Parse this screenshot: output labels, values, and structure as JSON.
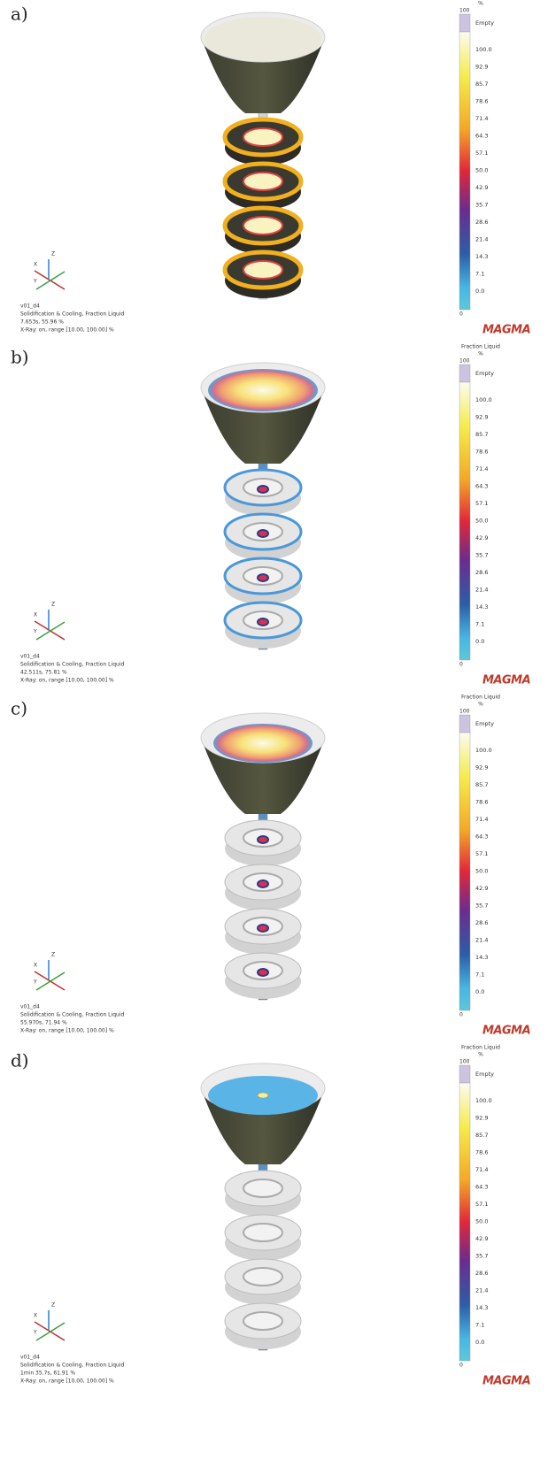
{
  "panels": [
    {
      "label": "a)",
      "legend": {
        "unit": "%",
        "max": "100",
        "min": "0",
        "empty": "Empty",
        "ticks": [
          "100.0",
          "92.9",
          "85.7",
          "78.6",
          "71.4",
          "64.3",
          "57.1",
          "50.0",
          "42.9",
          "35.7",
          "28.6",
          "21.4",
          "14.3",
          "7.1",
          "0.0"
        ]
      },
      "axes": {
        "x": "X",
        "y": "Y",
        "z": "Z"
      },
      "info": [
        "v01_d4",
        "Solidification & Cooling, Fraction Liquid",
        "7.653s, 55.96 %",
        "X-Ray: on, range [10.00, 100.00] %"
      ],
      "logo": "MAGMA"
    },
    {
      "label": "b)",
      "legend": {
        "title": "Fraction Liquid",
        "unit": "%",
        "max": "100",
        "min": "0",
        "empty": "Empty",
        "ticks": [
          "100.0",
          "92.9",
          "85.7",
          "78.6",
          "71.4",
          "64.3",
          "57.1",
          "50.0",
          "42.9",
          "35.7",
          "28.6",
          "21.4",
          "14.3",
          "7.1",
          "0.0"
        ]
      },
      "axes": {
        "x": "X",
        "y": "Y",
        "z": "Z"
      },
      "info": [
        "v01_d4",
        "Solidification & Cooling, Fraction Liquid",
        "42.511s, 75.81 %",
        "X-Ray: on, range [10.00, 100.00] %"
      ],
      "logo": "MAGMA"
    },
    {
      "label": "c)",
      "legend": {
        "title": "Fraction Liquid",
        "unit": "%",
        "max": "100",
        "min": "0",
        "empty": "Empty",
        "ticks": [
          "100.0",
          "92.9",
          "85.7",
          "78.6",
          "71.4",
          "64.3",
          "57.1",
          "50.0",
          "42.9",
          "35.7",
          "28.6",
          "21.4",
          "14.3",
          "7.1",
          "0.0"
        ]
      },
      "axes": {
        "x": "X",
        "y": "Y",
        "z": "Z"
      },
      "info": [
        "v01_d4",
        "Solidification & Cooling, Fraction Liquid",
        "55.970s, 71.94 %",
        "X-Ray: on, range [10.00, 100.00] %"
      ],
      "logo": "MAGMA"
    },
    {
      "label": "d)",
      "legend": {
        "title": "Fraction Liquid",
        "unit": "%",
        "max": "100",
        "min": "0",
        "empty": "Empty",
        "ticks": [
          "100.0",
          "92.9",
          "85.7",
          "78.6",
          "71.4",
          "64.3",
          "57.1",
          "50.0",
          "42.9",
          "35.7",
          "28.6",
          "21.4",
          "14.3",
          "7.1",
          "0.0"
        ]
      },
      "axes": {
        "x": "X",
        "y": "Y",
        "z": "Z"
      },
      "info": [
        "v01_d4",
        "Solidification & Cooling, Fraction Liquid",
        "1min 35.7s, 61.91 %",
        "X-Ray: on, range [10.00, 100.00] %"
      ],
      "logo": "MAGMA"
    }
  ]
}
